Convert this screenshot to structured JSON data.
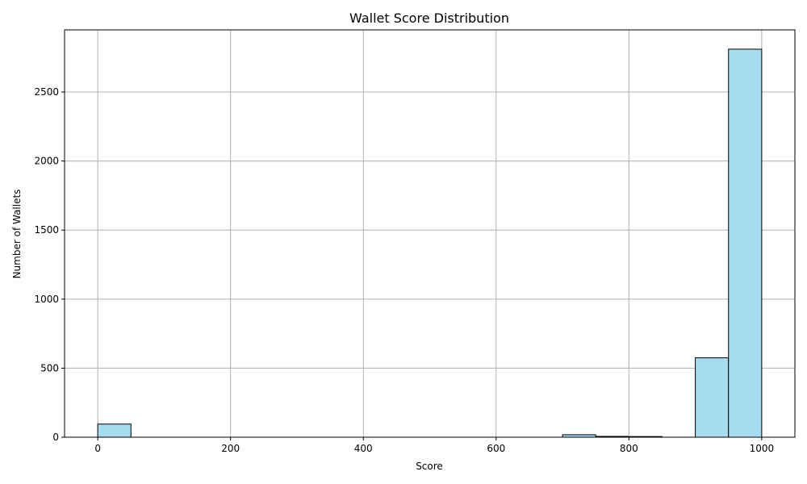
{
  "chart_data": {
    "type": "bar",
    "title": "Wallet Score Distribution",
    "xlabel": "Score",
    "ylabel": "Number of Wallets",
    "xlim": [
      -50,
      1050
    ],
    "ylim": [
      0,
      2950
    ],
    "xticks": [
      0,
      200,
      400,
      600,
      800,
      1000
    ],
    "yticks": [
      0,
      500,
      1000,
      1500,
      2000,
      2500
    ],
    "grid": true,
    "bar_color": "#a6dbf0",
    "bins": [
      {
        "start": 0,
        "end": 50,
        "count": 95
      },
      {
        "start": 700,
        "end": 750,
        "count": 18
      },
      {
        "start": 750,
        "end": 800,
        "count": 6
      },
      {
        "start": 800,
        "end": 850,
        "count": 5
      },
      {
        "start": 900,
        "end": 950,
        "count": 575
      },
      {
        "start": 950,
        "end": 1000,
        "count": 2810
      }
    ]
  }
}
